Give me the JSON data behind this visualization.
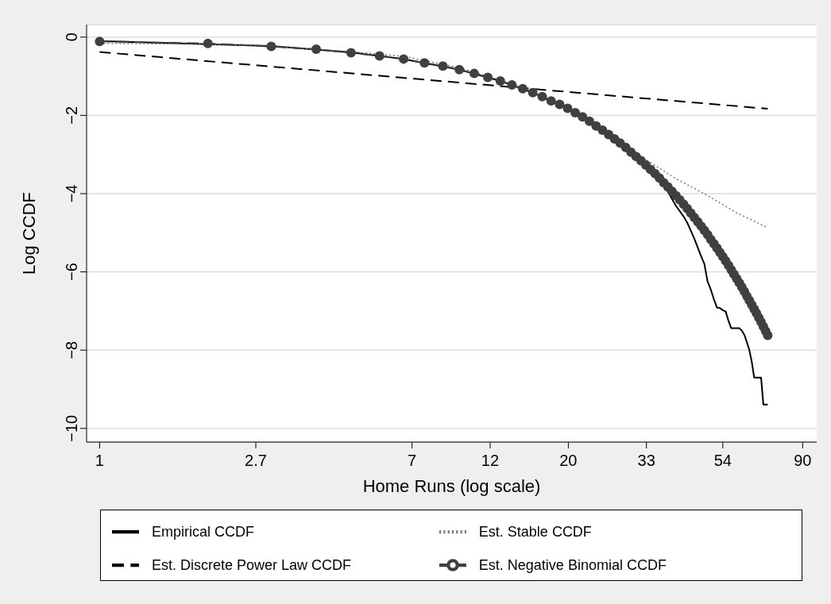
{
  "chart_data": {
    "type": "line",
    "xlabel": "Home Runs (log scale)",
    "ylabel": "Log CCDF",
    "log": "x",
    "grid": "y",
    "legend": "bottom",
    "xlim": [
      0.92,
      98.5
    ],
    "ylim": [
      -10.35,
      0.32
    ],
    "xticks": [
      1,
      {
        "value": 2.718,
        "label": "2.7"
      },
      {
        "value": 7.389,
        "label": "7"
      },
      {
        "value": 12.18,
        "label": "12"
      },
      {
        "value": 20.09,
        "label": "20"
      },
      {
        "value": 33.12,
        "label": "33"
      },
      54,
      {
        "value": 90.02,
        "label": "90"
      }
    ],
    "yticks": [
      0,
      -2,
      -4,
      -6,
      -8,
      -10
    ],
    "series": [
      {
        "name": "Empirical CCDF",
        "color": "#000000",
        "line_style": "solid",
        "x": [
          1,
          3,
          5,
          7,
          10,
          13,
          16,
          20,
          24,
          28,
          31,
          34,
          36,
          38,
          40,
          42,
          43,
          45,
          47,
          48,
          49,
          50,
          51,
          52,
          53,
          54,
          55,
          56,
          57,
          60,
          61,
          62,
          63,
          64,
          65,
          66,
          69,
          70,
          72
        ],
        "values": [
          -0.1,
          -0.23,
          -0.39,
          -0.56,
          -0.83,
          -1.12,
          -1.42,
          -1.83,
          -2.28,
          -2.73,
          -3.07,
          -3.42,
          -3.68,
          -3.95,
          -4.31,
          -4.58,
          -4.74,
          -5.15,
          -5.6,
          -5.8,
          -6.25,
          -6.45,
          -6.7,
          -6.91,
          -6.92,
          -6.98,
          -7.01,
          -7.25,
          -7.44,
          -7.44,
          -7.5,
          -7.61,
          -7.8,
          -8.0,
          -8.3,
          -8.7,
          -8.7,
          -9.39,
          -9.39
        ]
      },
      {
        "name": "Est. Stable CCDF",
        "color": "#777777",
        "line_style": "dotted",
        "x": [
          1,
          2,
          3,
          5,
          7,
          10,
          13,
          16,
          20,
          25,
          30,
          35,
          40,
          48,
          59,
          72
        ],
        "values": [
          -0.16,
          -0.18,
          -0.24,
          -0.37,
          -0.49,
          -0.78,
          -1.1,
          -1.4,
          -1.8,
          -2.35,
          -2.88,
          -3.28,
          -3.62,
          -4.0,
          -4.49,
          -4.87
        ]
      },
      {
        "name": "Est. Discrete Power Law CCDF",
        "color": "#000000",
        "line_style": "dashed",
        "x": [
          1,
          7,
          20,
          72
        ],
        "values": [
          -0.38,
          -1.04,
          -1.4,
          -1.83
        ]
      },
      {
        "name": "Est. Negative Binomial CCDF",
        "color": "#404040",
        "line_style": "dashed",
        "marker": "circle",
        "x": [
          1,
          2,
          3,
          4,
          5,
          6,
          7,
          8,
          9,
          10,
          11,
          12,
          13,
          14,
          15,
          16,
          17,
          18,
          19,
          20,
          21,
          22,
          23,
          24,
          25,
          26,
          27,
          28,
          29,
          30,
          31,
          32,
          33,
          34,
          35,
          36,
          37,
          38,
          39,
          40,
          41,
          42,
          43,
          44,
          45,
          46,
          47,
          48,
          49,
          50,
          51,
          52,
          53,
          54,
          55,
          56,
          57,
          58,
          59,
          60,
          61,
          62,
          63,
          64,
          65,
          66,
          67,
          68,
          69,
          70,
          71,
          72
        ],
        "values": [
          -0.11,
          -0.16,
          -0.24,
          -0.31,
          -0.4,
          -0.48,
          -0.56,
          -0.66,
          -0.74,
          -0.83,
          -0.93,
          -1.03,
          -1.12,
          -1.22,
          -1.32,
          -1.42,
          -1.52,
          -1.63,
          -1.72,
          -1.82,
          -1.93,
          -2.04,
          -2.15,
          -2.27,
          -2.38,
          -2.49,
          -2.6,
          -2.71,
          -2.82,
          -2.94,
          -3.05,
          -3.16,
          -3.27,
          -3.38,
          -3.49,
          -3.6,
          -3.72,
          -3.83,
          -3.94,
          -4.05,
          -4.16,
          -4.27,
          -4.38,
          -4.5,
          -4.61,
          -4.72,
          -4.83,
          -4.94,
          -5.05,
          -5.17,
          -5.28,
          -5.39,
          -5.5,
          -5.61,
          -5.72,
          -5.83,
          -5.95,
          -6.06,
          -6.17,
          -6.28,
          -6.39,
          -6.5,
          -6.62,
          -6.73,
          -6.84,
          -6.95,
          -7.06,
          -7.17,
          -7.28,
          -7.4,
          -7.51,
          -7.62
        ]
      }
    ]
  }
}
